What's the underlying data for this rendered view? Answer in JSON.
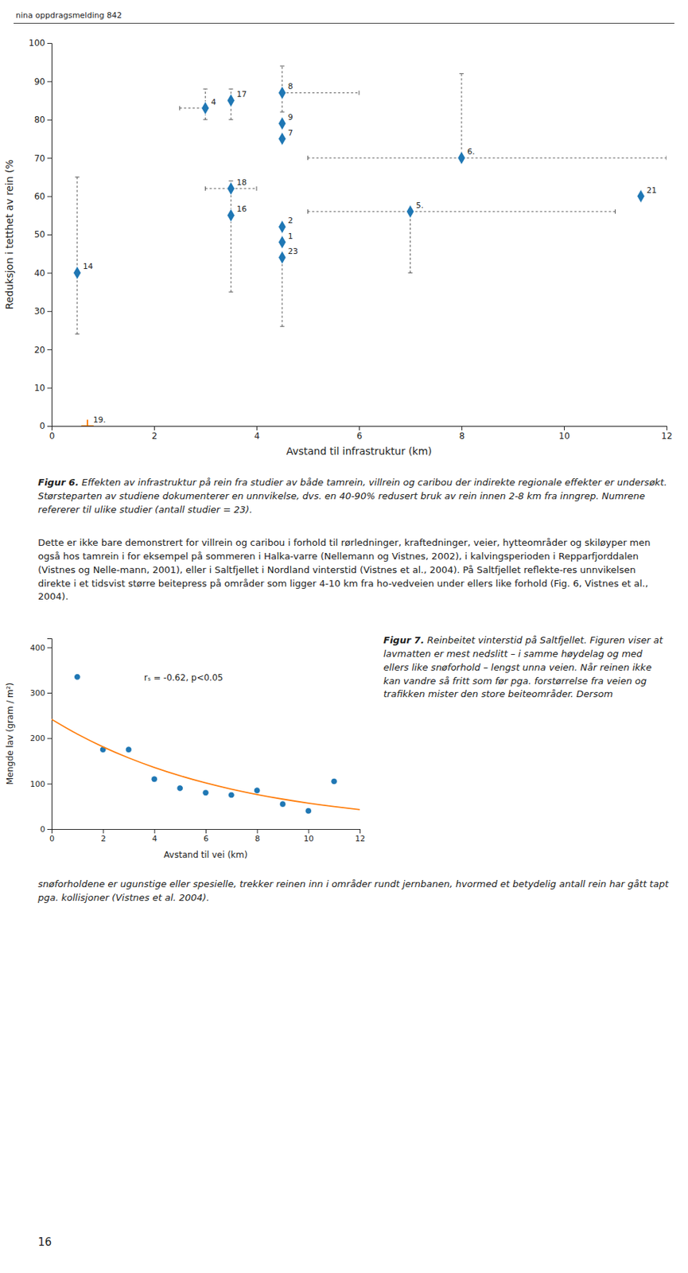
{
  "header_text": "nina oppdragsmelding 842",
  "chart_data": [
    {
      "type": "scatter",
      "xlabel": "Avstand til infrastruktur (km)",
      "ylabel": "Reduksjon i tetthet av rein (%",
      "xlim": [
        0,
        12
      ],
      "ylim": [
        0,
        100
      ],
      "xticks": [
        0,
        2,
        4,
        6,
        8,
        10,
        12
      ],
      "yticks": [
        0,
        10,
        20,
        30,
        40,
        50,
        60,
        70,
        80,
        90,
        100
      ],
      "series": [
        {
          "marker": "diamond",
          "x": [
            0.5,
            3.0,
            3.5,
            3.5,
            3.5,
            4.5,
            4.5,
            4.5,
            4.5,
            4.5,
            4.5,
            7.0,
            8.0,
            11.5
          ],
          "values": [
            40,
            83,
            85,
            62,
            55,
            87,
            79,
            75,
            52,
            48,
            44,
            56,
            70,
            60
          ],
          "point_labels": [
            "14",
            "4",
            "17",
            "18",
            "16",
            "8",
            "9",
            "7",
            "2",
            "1",
            "23",
            "5.",
            "6.",
            "21"
          ],
          "yerr_lo": [
            16,
            3,
            5,
            27,
            0,
            5,
            0,
            0,
            0,
            0,
            18,
            16,
            0,
            0
          ],
          "yerr_hi": [
            25,
            5,
            3,
            2,
            0,
            7,
            0,
            0,
            0,
            0,
            0,
            0,
            22,
            0
          ],
          "xerr_lo": [
            0,
            0.5,
            0,
            0.5,
            0,
            0,
            0,
            0,
            0,
            0,
            0,
            2.0,
            3.0,
            0
          ],
          "xerr_hi": [
            0,
            0,
            0,
            0.5,
            0,
            1.5,
            0,
            0,
            0,
            0,
            0,
            4.0,
            4.0,
            0
          ]
        },
        {
          "marker": "plus",
          "x": [
            0.7
          ],
          "values": [
            0
          ],
          "point_labels": [
            "19."
          ]
        }
      ]
    },
    {
      "type": "scatter",
      "xlabel": "Avstand til vei (km)",
      "ylabel": "Mengde lav (gram / m²)",
      "annotation": "rₛ = -0.62, p<0.05",
      "xlim": [
        0,
        12
      ],
      "ylim": [
        0,
        420
      ],
      "xticks": [
        0,
        2,
        4,
        6,
        8,
        10,
        12
      ],
      "yticks": [
        0,
        100,
        200,
        300,
        400
      ],
      "series": [
        {
          "marker": "circle",
          "x": [
            1,
            2,
            3,
            4,
            5,
            6,
            7,
            8,
            9,
            10,
            11
          ],
          "values": [
            335,
            175,
            175,
            110,
            90,
            80,
            75,
            85,
            55,
            40,
            105
          ]
        },
        {
          "type": "line",
          "x": [
            0,
            1,
            2,
            3,
            4,
            5,
            6,
            7,
            8,
            9,
            10,
            11,
            12
          ],
          "values": [
            241.63,
            209.15,
            181.05,
            156.72,
            135.66,
            117.43,
            101.65,
            87.99,
            76.16,
            65.93,
            57.07,
            49.4,
            42.76
          ]
        }
      ]
    }
  ],
  "fig6_bold": "Figur 6.",
  "fig6_rest": " Effekten av infrastruktur på rein fra studier av både tamrein, villrein og caribou der indirekte regionale effekter er undersøkt. Størsteparten av studiene dokumenterer en unnvikelse, dvs. en 40-90% redusert bruk av rein innen 2-8 km fra inngrep. Numrene refererer til ulike studier (antall studier = 23).",
  "body_text": "Dette er ikke bare demonstrert for villrein og caribou i forhold til rørledninger, kraftedninger, veier, hytteområder og skiløyper men også hos tamrein i for eksempel på sommeren i Halka-varre (Nellemann og Vistnes, 2002), i kalvingsperioden i Repparfjorddalen (Vistnes og Nelle-mann, 2001), eller i Saltfjellet i Nordland vinterstid (Vistnes et al., 2004). På Saltfjellet reflekte-res unnvikelsen direkte i et tidsvist større beitepress på områder som ligger 4-10 km fra ho-vedveien under ellers like forhold (Fig. 6, Vistnes et al., 2004).",
  "fig7_bold": "Figur 7.",
  "fig7_rest": " Reinbeitet vinterstid på Saltfjellet. Figuren viser at lavmatten er mest nedslitt – i samme høydelag og med ellers like snøforhold – lengst unna veien. Når reinen ikke kan vandre så fritt som før pga. forstørrelse fra veien og trafikken mister den store beiteområder. Dersom",
  "footer_text": "snøforholdene er ugunstige eller spesielle, trekker reinen inn i områder rundt jernbanen, hvormed et betydelig antall rein har gått tapt pga. kollisjoner (Vistnes et al. 2004).",
  "page_number": "16"
}
